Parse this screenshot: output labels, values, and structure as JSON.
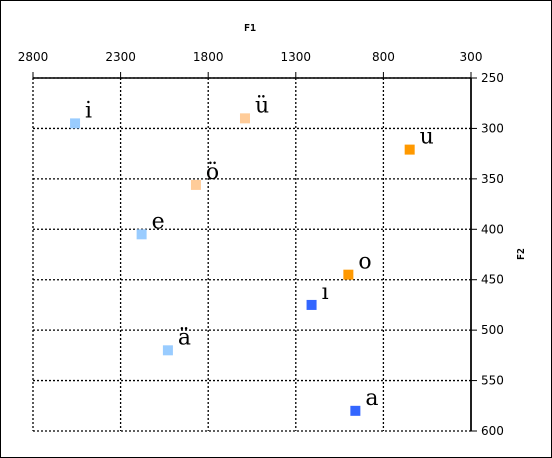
{
  "chart_data": {
    "type": "scatter",
    "xlabel": "F1",
    "ylabel": "F2",
    "x_axis_position": "top",
    "y_axis_position": "right",
    "x_reversed": true,
    "y_reversed": true,
    "xlim": [
      300,
      2800
    ],
    "ylim": [
      250,
      600
    ],
    "xticks": [
      2800,
      2300,
      1800,
      1300,
      800,
      300
    ],
    "yticks": [
      250,
      300,
      350,
      400,
      450,
      500,
      550,
      600
    ],
    "grid": true,
    "points": [
      {
        "label": "i",
        "x": 2560,
        "y": 295,
        "color": "#99ccff"
      },
      {
        "label": "ü",
        "x": 1590,
        "y": 290,
        "color": "#ffcc99"
      },
      {
        "label": "u",
        "x": 650,
        "y": 321,
        "color": "#ff9900"
      },
      {
        "label": "ö",
        "x": 1870,
        "y": 356,
        "color": "#ffcc99"
      },
      {
        "label": "e",
        "x": 2180,
        "y": 405,
        "color": "#99ccff"
      },
      {
        "label": "o",
        "x": 1000,
        "y": 445,
        "color": "#ff9900"
      },
      {
        "label": "ı",
        "x": 1210,
        "y": 475,
        "color": "#3366ff"
      },
      {
        "label": "ä",
        "x": 2030,
        "y": 520,
        "color": "#99ccff"
      },
      {
        "label": "a",
        "x": 960,
        "y": 580,
        "color": "#3366ff"
      }
    ]
  }
}
